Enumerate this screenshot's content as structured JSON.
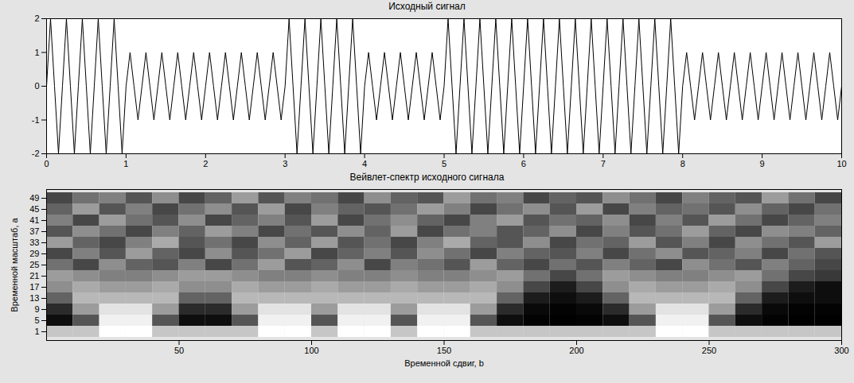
{
  "chart_data": [
    {
      "type": "line",
      "title": "Исходный сигнал",
      "color": "#000000",
      "xlim": [
        0,
        10
      ],
      "ylim": [
        -2,
        2
      ],
      "xticks": [
        0,
        1,
        2,
        3,
        4,
        5,
        6,
        7,
        8,
        9,
        10
      ],
      "yticks": [
        -2,
        -1,
        0,
        1,
        2
      ],
      "x": [
        0,
        0.05,
        0.1,
        0.15,
        0.2,
        0.25,
        0.3,
        0.35,
        0.4,
        0.45,
        0.5,
        0.55,
        0.6,
        0.65,
        0.7,
        0.75,
        0.8,
        0.85,
        0.9,
        0.95,
        1,
        1.05,
        1.1,
        1.15,
        1.2,
        1.25,
        1.3,
        1.35,
        1.4,
        1.45,
        1.5,
        1.55,
        1.6,
        1.65,
        1.7,
        1.75,
        1.8,
        1.85,
        1.9,
        1.95,
        2,
        2.05,
        2.1,
        2.15,
        2.2,
        2.25,
        2.3,
        2.35,
        2.4,
        2.45,
        2.5,
        2.55,
        2.6,
        2.65,
        2.7,
        2.75,
        2.8,
        2.85,
        2.9,
        2.95,
        3,
        3.05,
        3.1,
        3.15,
        3.2,
        3.25,
        3.3,
        3.35,
        3.4,
        3.45,
        3.5,
        3.55,
        3.6,
        3.65,
        3.7,
        3.75,
        3.8,
        3.85,
        3.9,
        3.95,
        4,
        4.05,
        4.1,
        4.15,
        4.2,
        4.25,
        4.3,
        4.35,
        4.4,
        4.45,
        4.5,
        4.55,
        4.6,
        4.65,
        4.7,
        4.75,
        4.8,
        4.85,
        4.9,
        4.95,
        5,
        5.05,
        5.1,
        5.15,
        5.2,
        5.25,
        5.3,
        5.35,
        5.4,
        5.45,
        5.5,
        5.55,
        5.6,
        5.65,
        5.7,
        5.75,
        5.8,
        5.85,
        5.9,
        5.95,
        6,
        6.05,
        6.1,
        6.15,
        6.2,
        6.25,
        6.3,
        6.35,
        6.4,
        6.45,
        6.5,
        6.55,
        6.6,
        6.65,
        6.7,
        6.75,
        6.8,
        6.85,
        6.9,
        6.95,
        7,
        7.05,
        7.1,
        7.15,
        7.2,
        7.25,
        7.3,
        7.35,
        7.4,
        7.45,
        7.5,
        7.55,
        7.6,
        7.65,
        7.7,
        7.75,
        7.8,
        7.85,
        7.9,
        7.95,
        8,
        8.05,
        8.1,
        8.15,
        8.2,
        8.25,
        8.3,
        8.35,
        8.4,
        8.45,
        8.5,
        8.55,
        8.6,
        8.65,
        8.7,
        8.75,
        8.8,
        8.85,
        8.9,
        8.95,
        9,
        9.05,
        9.1,
        9.15,
        9.2,
        9.25,
        9.3,
        9.35,
        9.4,
        9.45,
        9.5,
        9.55,
        9.6,
        9.65,
        9.7,
        9.75,
        9.8,
        9.85,
        9.9,
        9.95,
        10
      ],
      "values": [
        0,
        2,
        0,
        -2,
        0,
        2,
        0,
        -2,
        0,
        2,
        0,
        -2,
        0,
        2,
        0,
        -2,
        0,
        2,
        0,
        -2,
        0,
        1,
        0,
        -1,
        0,
        1,
        0,
        -1,
        0,
        1,
        0,
        -1,
        0,
        1,
        0,
        -1,
        0,
        1,
        0,
        -1,
        0,
        1,
        0,
        -1,
        0,
        1,
        0,
        -1,
        0,
        1,
        0,
        -1,
        0,
        1,
        0,
        -1,
        0,
        1,
        0,
        -1,
        0,
        2,
        0,
        -2,
        0,
        2,
        0,
        -2,
        0,
        2,
        0,
        -2,
        0,
        2,
        0,
        -2,
        0,
        2,
        0,
        -2,
        0,
        1,
        0,
        -1,
        0,
        1,
        0,
        -1,
        0,
        1,
        0,
        -1,
        0,
        1,
        0,
        -1,
        0,
        1,
        0,
        -1,
        0,
        2,
        0,
        -2,
        0,
        2,
        0,
        -2,
        0,
        2,
        0,
        -2,
        0,
        2,
        0,
        -2,
        0,
        2,
        0,
        -2,
        0,
        2,
        0,
        -2,
        0,
        2,
        0,
        -2,
        0,
        2,
        0,
        -2,
        0,
        2,
        0,
        -2,
        0,
        2,
        0,
        -2,
        0,
        2,
        0,
        -2,
        0,
        2,
        0,
        -2,
        0,
        2,
        0,
        -2,
        0,
        2,
        0,
        -2,
        0,
        2,
        0,
        -2,
        0,
        1,
        0,
        -1,
        0,
        1,
        0,
        -1,
        0,
        1,
        0,
        -1,
        0,
        1,
        0,
        -1,
        0,
        1,
        0,
        -1,
        0,
        1,
        0,
        -1,
        0,
        1,
        0,
        -1,
        0,
        1,
        0,
        -1,
        0,
        1,
        0,
        -1,
        0,
        1,
        0,
        -1,
        0
      ]
    },
    {
      "type": "heatmap",
      "title": "Вейвлет-спектр исходного сигнала",
      "xlabel": "Временной сдвиг, b",
      "ylabel": "Временной масштаб, a",
      "xlim": [
        0,
        300
      ],
      "xticks": [
        50,
        100,
        150,
        200,
        250,
        300
      ],
      "categories": [
        1,
        5,
        9,
        13,
        17,
        21,
        25,
        29,
        33,
        37,
        41,
        45,
        49
      ],
      "x_edges": [
        0,
        10,
        20,
        30,
        40,
        50,
        60,
        70,
        80,
        90,
        100,
        110,
        120,
        130,
        140,
        150,
        160,
        170,
        180,
        190,
        200,
        210,
        220,
        230,
        240,
        250,
        260,
        270,
        280,
        290,
        300
      ],
      "cells": [
        [
          0.75,
          0.75,
          0.95,
          0.95,
          0.75,
          0.75,
          0.75,
          0.75,
          0.95,
          0.95,
          0.75,
          0.95,
          0.95,
          0.75,
          0.95,
          0.95,
          0.75,
          0.75,
          0.75,
          0.75,
          0.75,
          0.75,
          0.75,
          0.95,
          0.95,
          0.75,
          0.75,
          0.75,
          0.75,
          0.75
        ],
        [
          0.1,
          0.35,
          0.9,
          0.9,
          0.35,
          0.1,
          0.1,
          0.35,
          0.9,
          0.9,
          0.35,
          0.9,
          0.9,
          0.35,
          0.9,
          0.9,
          0.35,
          0.1,
          0.06,
          0.05,
          0.06,
          0.1,
          0.35,
          0.9,
          0.9,
          0.35,
          0.1,
          0.06,
          0.05,
          0.05
        ],
        [
          0.2,
          0.6,
          0.85,
          0.85,
          0.6,
          0.2,
          0.2,
          0.6,
          0.85,
          0.85,
          0.6,
          0.85,
          0.85,
          0.6,
          0.85,
          0.85,
          0.6,
          0.2,
          0.08,
          0.06,
          0.08,
          0.2,
          0.6,
          0.85,
          0.85,
          0.6,
          0.2,
          0.08,
          0.06,
          0.06
        ],
        [
          0.4,
          0.7,
          0.7,
          0.7,
          0.7,
          0.4,
          0.4,
          0.7,
          0.7,
          0.7,
          0.7,
          0.7,
          0.7,
          0.7,
          0.7,
          0.7,
          0.7,
          0.4,
          0.15,
          0.1,
          0.15,
          0.4,
          0.7,
          0.7,
          0.7,
          0.7,
          0.4,
          0.15,
          0.1,
          0.1
        ],
        [
          0.55,
          0.65,
          0.6,
          0.6,
          0.65,
          0.55,
          0.55,
          0.65,
          0.6,
          0.6,
          0.65,
          0.6,
          0.6,
          0.65,
          0.6,
          0.6,
          0.65,
          0.55,
          0.3,
          0.15,
          0.3,
          0.55,
          0.65,
          0.6,
          0.6,
          0.65,
          0.55,
          0.3,
          0.15,
          0.1
        ],
        [
          0.6,
          0.55,
          0.5,
          0.5,
          0.55,
          0.6,
          0.6,
          0.55,
          0.5,
          0.5,
          0.55,
          0.5,
          0.5,
          0.55,
          0.5,
          0.5,
          0.55,
          0.6,
          0.45,
          0.3,
          0.45,
          0.6,
          0.55,
          0.5,
          0.5,
          0.55,
          0.6,
          0.45,
          0.3,
          0.25
        ],
        [
          0.45,
          0.3,
          0.55,
          0.4,
          0.35,
          0.5,
          0.3,
          0.45,
          0.6,
          0.35,
          0.4,
          0.55,
          0.3,
          0.5,
          0.45,
          0.35,
          0.6,
          0.4,
          0.3,
          0.45,
          0.35,
          0.5,
          0.4,
          0.3,
          0.55,
          0.45,
          0.35,
          0.5,
          0.4,
          0.3
        ],
        [
          0.3,
          0.5,
          0.35,
          0.6,
          0.4,
          0.3,
          0.55,
          0.35,
          0.45,
          0.6,
          0.3,
          0.4,
          0.5,
          0.35,
          0.55,
          0.45,
          0.3,
          0.5,
          0.4,
          0.35,
          0.5,
          0.3,
          0.45,
          0.55,
          0.35,
          0.4,
          0.5,
          0.3,
          0.45,
          0.35
        ],
        [
          0.6,
          0.4,
          0.3,
          0.5,
          0.65,
          0.35,
          0.45,
          0.3,
          0.55,
          0.4,
          0.6,
          0.35,
          0.45,
          0.3,
          0.5,
          0.65,
          0.4,
          0.35,
          0.55,
          0.3,
          0.45,
          0.4,
          0.6,
          0.35,
          0.5,
          0.3,
          0.55,
          0.45,
          0.35,
          0.6
        ],
        [
          0.35,
          0.55,
          0.45,
          0.3,
          0.5,
          0.4,
          0.6,
          0.5,
          0.3,
          0.45,
          0.35,
          0.55,
          0.4,
          0.6,
          0.3,
          0.45,
          0.5,
          0.35,
          0.4,
          0.55,
          0.3,
          0.5,
          0.35,
          0.45,
          0.6,
          0.4,
          0.3,
          0.55,
          0.5,
          0.4
        ],
        [
          0.5,
          0.3,
          0.6,
          0.45,
          0.35,
          0.55,
          0.3,
          0.4,
          0.5,
          0.35,
          0.6,
          0.3,
          0.45,
          0.55,
          0.4,
          0.3,
          0.5,
          0.6,
          0.35,
          0.45,
          0.4,
          0.55,
          0.3,
          0.5,
          0.35,
          0.6,
          0.45,
          0.3,
          0.4,
          0.5
        ],
        [
          0.4,
          0.6,
          0.35,
          0.5,
          0.3,
          0.45,
          0.55,
          0.35,
          0.6,
          0.3,
          0.5,
          0.4,
          0.35,
          0.45,
          0.6,
          0.5,
          0.3,
          0.45,
          0.55,
          0.35,
          0.6,
          0.3,
          0.5,
          0.4,
          0.45,
          0.35,
          0.55,
          0.4,
          0.3,
          0.45
        ],
        [
          0.3,
          0.45,
          0.5,
          0.35,
          0.55,
          0.3,
          0.4,
          0.6,
          0.35,
          0.5,
          0.45,
          0.3,
          0.55,
          0.4,
          0.35,
          0.6,
          0.45,
          0.5,
          0.3,
          0.4,
          0.35,
          0.55,
          0.45,
          0.3,
          0.5,
          0.4,
          0.35,
          0.6,
          0.45,
          0.3
        ]
      ]
    }
  ]
}
